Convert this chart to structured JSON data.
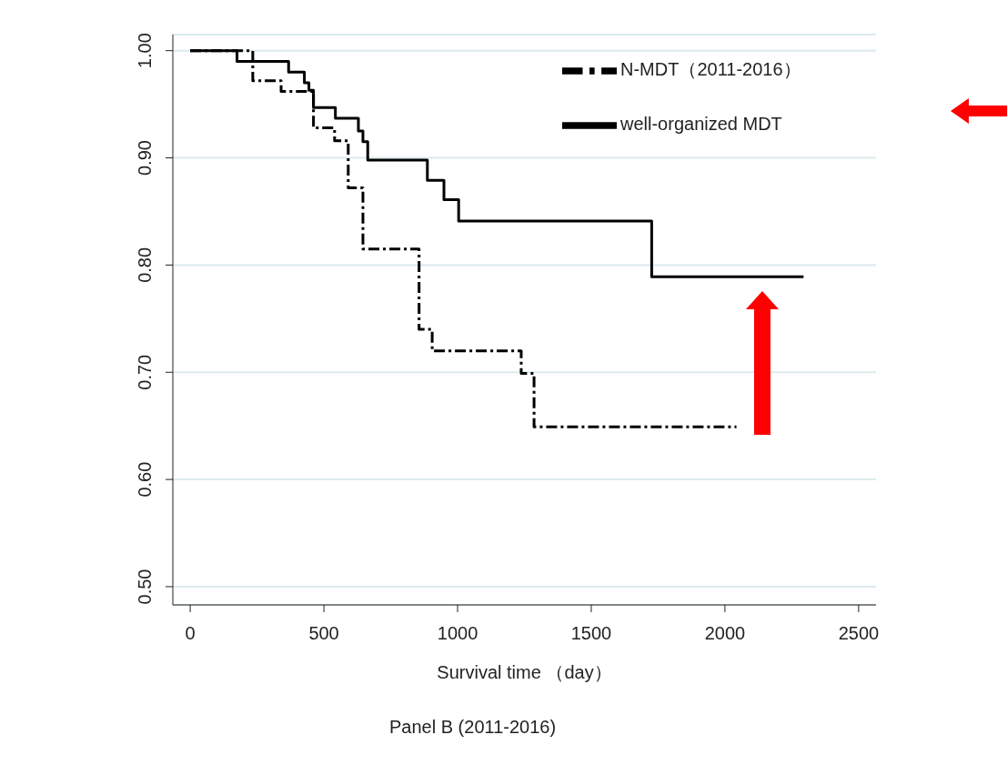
{
  "chart_data": {
    "type": "step",
    "title": "Panel B (2011-2016)",
    "xlabel": "Survival time （day）",
    "series": [
      {
        "name": "N-MDT（2011-2016）",
        "color": "#000000",
        "line_style": "dashed",
        "x": [
          0,
          234,
          340,
          461,
          540,
          591,
          646,
          856,
          905,
          1238,
          1286,
          2043
        ],
        "values": [
          1.0,
          0.972,
          0.962,
          0.928,
          0.916,
          0.872,
          0.815,
          0.74,
          0.72,
          0.699,
          0.649,
          0.649
        ]
      },
      {
        "name": "well-organized MDT",
        "color": "#000000",
        "line_style": "solid",
        "x": [
          0,
          175,
          368,
          427,
          444,
          461,
          543,
          629,
          646,
          664,
          887,
          949,
          1004,
          1726,
          2294
        ],
        "values": [
          1.0,
          0.99,
          0.98,
          0.97,
          0.963,
          0.947,
          0.937,
          0.925,
          0.915,
          0.898,
          0.879,
          0.861,
          0.841,
          0.789,
          0.789
        ]
      }
    ],
    "xlim": [
      -65,
      2565
    ],
    "xticks": [
      0,
      500,
      1000,
      1500,
      2000,
      2500
    ],
    "ylim": [
      0.483,
      1.015
    ],
    "yticks": [
      {
        "value": 0.5,
        "label": "0.50"
      },
      {
        "value": 0.6,
        "label": "0.60"
      },
      {
        "value": 0.7,
        "label": "0.70"
      },
      {
        "value": 0.8,
        "label": "0.80"
      },
      {
        "value": 0.9,
        "label": "0.90"
      },
      {
        "value": 1.0,
        "label": "1.00"
      }
    ],
    "grid": "y",
    "legend": "top right"
  }
}
